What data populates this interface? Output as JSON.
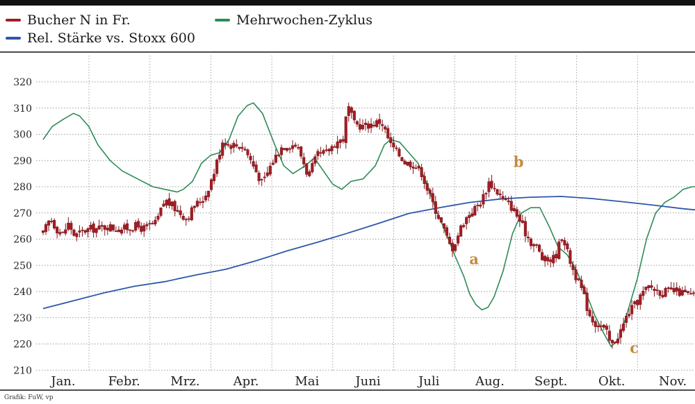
{
  "chart_data": {
    "type": "candlestick",
    "legend": [
      {
        "label": "Bucher N in Fr.",
        "color": "#a01e24"
      },
      {
        "label": "Rel. Stärke vs. Stoxx 600",
        "color": "#2b57a8"
      },
      {
        "label": "Mehrwochen-Zyklus",
        "color": "#2e8b57"
      }
    ],
    "months": [
      "Jan.",
      "Febr.",
      "Mrz.",
      "Apr.",
      "Mai",
      "Juni",
      "Juli",
      "Aug.",
      "Sept.",
      "Okt.",
      "Nov."
    ],
    "yticks": [
      210,
      220,
      230,
      240,
      250,
      260,
      270,
      280,
      290,
      300,
      310,
      320
    ],
    "ylim": [
      210,
      325
    ],
    "grid": true,
    "price_path": [
      [
        0,
        262
      ],
      [
        0.12,
        268
      ],
      [
        0.22,
        264
      ],
      [
        0.32,
        262
      ],
      [
        0.42,
        266
      ],
      [
        0.52,
        261
      ],
      [
        0.65,
        263
      ],
      [
        0.8,
        264
      ],
      [
        0.92,
        264
      ],
      [
        1.05,
        265
      ],
      [
        1.2,
        264
      ],
      [
        1.35,
        264
      ],
      [
        1.5,
        265
      ],
      [
        1.65,
        264
      ],
      [
        1.85,
        266
      ],
      [
        2.0,
        275
      ],
      [
        2.2,
        271
      ],
      [
        2.35,
        268
      ],
      [
        2.5,
        273
      ],
      [
        2.65,
        276
      ],
      [
        2.8,
        285
      ],
      [
        2.95,
        298
      ],
      [
        3.05,
        296
      ],
      [
        3.15,
        296
      ],
      [
        3.3,
        295
      ],
      [
        3.45,
        288
      ],
      [
        3.6,
        281
      ],
      [
        3.75,
        289
      ],
      [
        3.9,
        295
      ],
      [
        4.0,
        296
      ],
      [
        4.15,
        296
      ],
      [
        4.25,
        291
      ],
      [
        4.35,
        284
      ],
      [
        4.5,
        292
      ],
      [
        4.65,
        293
      ],
      [
        4.8,
        297
      ],
      [
        4.92,
        298
      ],
      [
        5.0,
        311
      ],
      [
        5.1,
        304
      ],
      [
        5.25,
        303
      ],
      [
        5.4,
        304
      ],
      [
        5.55,
        305
      ],
      [
        5.7,
        296
      ],
      [
        5.85,
        292
      ],
      [
        5.95,
        289
      ],
      [
        6.05,
        289
      ],
      [
        6.2,
        286
      ],
      [
        6.35,
        276
      ],
      [
        6.5,
        268
      ],
      [
        6.6,
        262
      ],
      [
        6.7,
        256
      ],
      [
        6.78,
        260
      ],
      [
        6.88,
        266
      ],
      [
        7.0,
        270
      ],
      [
        7.1,
        272
      ],
      [
        7.2,
        275
      ],
      [
        7.32,
        282
      ],
      [
        7.45,
        278
      ],
      [
        7.55,
        275
      ],
      [
        7.7,
        272
      ],
      [
        7.8,
        268
      ],
      [
        7.9,
        263
      ],
      [
        8.0,
        259
      ],
      [
        8.1,
        257
      ],
      [
        8.2,
        252
      ],
      [
        8.3,
        252
      ],
      [
        8.4,
        253
      ],
      [
        8.52,
        262
      ],
      [
        8.6,
        255
      ],
      [
        8.7,
        248
      ],
      [
        8.85,
        240
      ],
      [
        8.95,
        232
      ],
      [
        9.05,
        228
      ],
      [
        9.15,
        227
      ],
      [
        9.25,
        224
      ],
      [
        9.32,
        219
      ],
      [
        9.4,
        222
      ],
      [
        9.5,
        226
      ],
      [
        9.6,
        232
      ],
      [
        9.72,
        235
      ],
      [
        9.82,
        239
      ],
      [
        9.95,
        242
      ],
      [
        10.1,
        240
      ],
      [
        10.25,
        240
      ],
      [
        10.4,
        240
      ],
      [
        10.55,
        239
      ],
      [
        10.7,
        238
      ],
      [
        10.78,
        238
      ]
    ],
    "rel_strength": [
      [
        0,
        233.5
      ],
      [
        0.5,
        236.5
      ],
      [
        1,
        239.5
      ],
      [
        1.5,
        242
      ],
      [
        2,
        243.8
      ],
      [
        2.5,
        246.3
      ],
      [
        3,
        248.5
      ],
      [
        3.5,
        251.8
      ],
      [
        4,
        255.5
      ],
      [
        4.5,
        258.8
      ],
      [
        5,
        262.3
      ],
      [
        5.5,
        266
      ],
      [
        6,
        269.8
      ],
      [
        6.5,
        272
      ],
      [
        7,
        274
      ],
      [
        7.5,
        275.3
      ],
      [
        8,
        276
      ],
      [
        8.5,
        276.3
      ],
      [
        9,
        275.5
      ],
      [
        9.5,
        274.3
      ],
      [
        10,
        273
      ],
      [
        10.5,
        271.6
      ],
      [
        10.78,
        271
      ]
    ],
    "cycle": [
      [
        0,
        298
      ],
      [
        0.15,
        303
      ],
      [
        0.35,
        306
      ],
      [
        0.5,
        308
      ],
      [
        0.6,
        307
      ],
      [
        0.75,
        303
      ],
      [
        0.9,
        296
      ],
      [
        1.1,
        290
      ],
      [
        1.3,
        286
      ],
      [
        1.55,
        283
      ],
      [
        1.8,
        280
      ],
      [
        2.0,
        279
      ],
      [
        2.2,
        278
      ],
      [
        2.3,
        279
      ],
      [
        2.45,
        282
      ],
      [
        2.6,
        289
      ],
      [
        2.75,
        292
      ],
      [
        2.9,
        293
      ],
      [
        3.05,
        298
      ],
      [
        3.2,
        307
      ],
      [
        3.35,
        311
      ],
      [
        3.45,
        312
      ],
      [
        3.6,
        308
      ],
      [
        3.8,
        296
      ],
      [
        3.95,
        288
      ],
      [
        4.1,
        285
      ],
      [
        4.3,
        288
      ],
      [
        4.45,
        291
      ],
      [
        4.6,
        286
      ],
      [
        4.75,
        281
      ],
      [
        4.9,
        279
      ],
      [
        5.05,
        282
      ],
      [
        5.25,
        283
      ],
      [
        5.45,
        288
      ],
      [
        5.6,
        296
      ],
      [
        5.7,
        298
      ],
      [
        5.85,
        297
      ],
      [
        6.0,
        293
      ],
      [
        6.15,
        289
      ],
      [
        6.3,
        281
      ],
      [
        6.45,
        271
      ],
      [
        6.6,
        263
      ],
      [
        6.75,
        254
      ],
      [
        6.9,
        246
      ],
      [
        7.0,
        239
      ],
      [
        7.1,
        235
      ],
      [
        7.2,
        233
      ],
      [
        7.3,
        234
      ],
      [
        7.4,
        238
      ],
      [
        7.55,
        248
      ],
      [
        7.7,
        262
      ],
      [
        7.85,
        270
      ],
      [
        8.0,
        272
      ],
      [
        8.15,
        272
      ],
      [
        8.3,
        265
      ],
      [
        8.45,
        257
      ],
      [
        8.6,
        254
      ],
      [
        8.75,
        248
      ],
      [
        8.9,
        240
      ],
      [
        9.05,
        231
      ],
      [
        9.2,
        224
      ],
      [
        9.32,
        219
      ],
      [
        9.45,
        222
      ],
      [
        9.6,
        233
      ],
      [
        9.75,
        245
      ],
      [
        9.9,
        260
      ],
      [
        10.05,
        270
      ],
      [
        10.2,
        274
      ],
      [
        10.35,
        276
      ],
      [
        10.5,
        279
      ],
      [
        10.65,
        280
      ],
      [
        10.78,
        280
      ]
    ],
    "annotations": [
      {
        "label": "a",
        "x": 7.07,
        "y": 250.5,
        "color": "#c58a3a"
      },
      {
        "label": "b",
        "x": 7.8,
        "y": 287.5,
        "color": "#c58a3a"
      },
      {
        "label": "c",
        "x": 9.7,
        "y": 216.5,
        "color": "#c58a3a"
      }
    ]
  },
  "source": "Grafik: FuW, vp"
}
